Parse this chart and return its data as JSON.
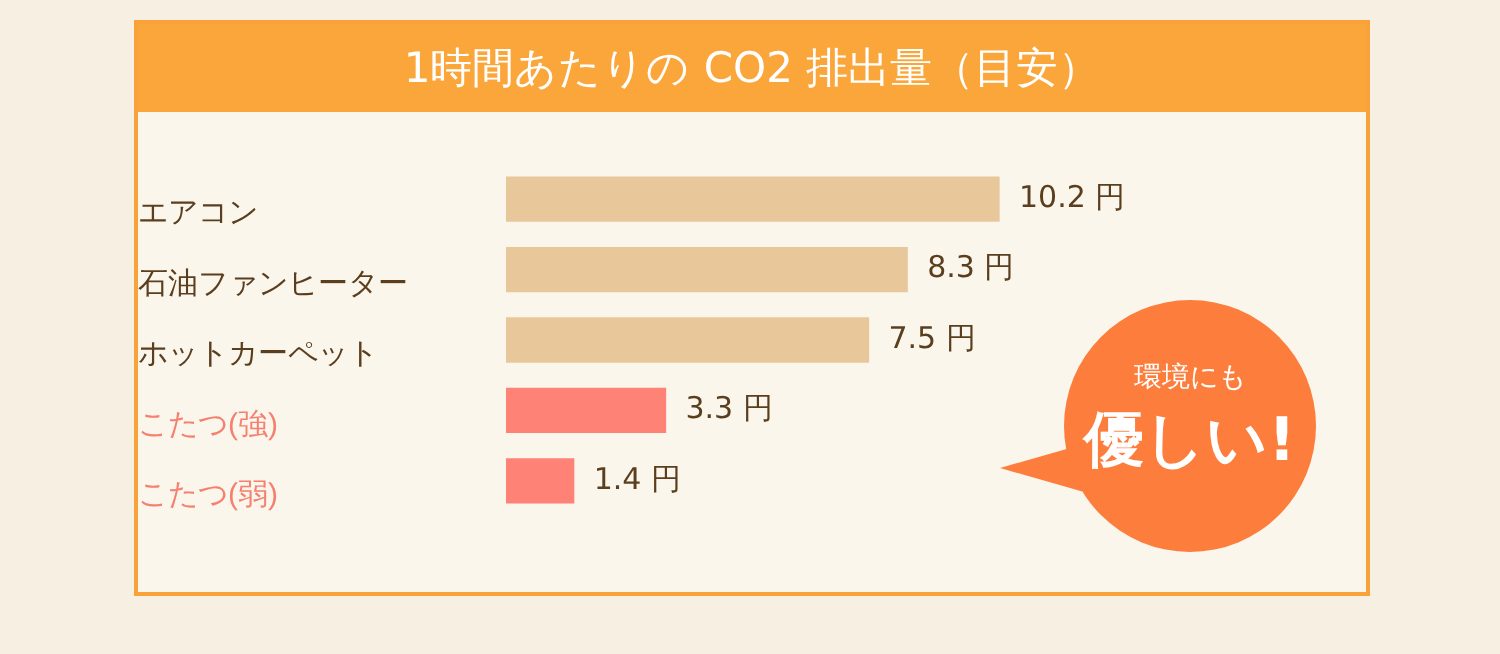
{
  "chart_data": {
    "type": "bar",
    "orientation": "horizontal",
    "title": "1時間あたりの CO2 排出量（目安）",
    "categories": [
      "エアコン",
      "石油ファンヒーター",
      "ホットカーペット",
      "こたつ(強)",
      "こたつ(弱)"
    ],
    "values": [
      10.2,
      8.3,
      7.5,
      3.3,
      1.4
    ],
    "colors": [
      "#e8c89a",
      "#e8c89a",
      "#e8c89a",
      "#ff8277",
      "#ff8277"
    ],
    "value_labels": [
      "10.2 円",
      "8.3 円",
      "7.5 円",
      "3.3 円",
      "1.4 円"
    ],
    "annotations": [
      "環境にも",
      "優しい!"
    ],
    "grid": false,
    "legend": false
  }
}
